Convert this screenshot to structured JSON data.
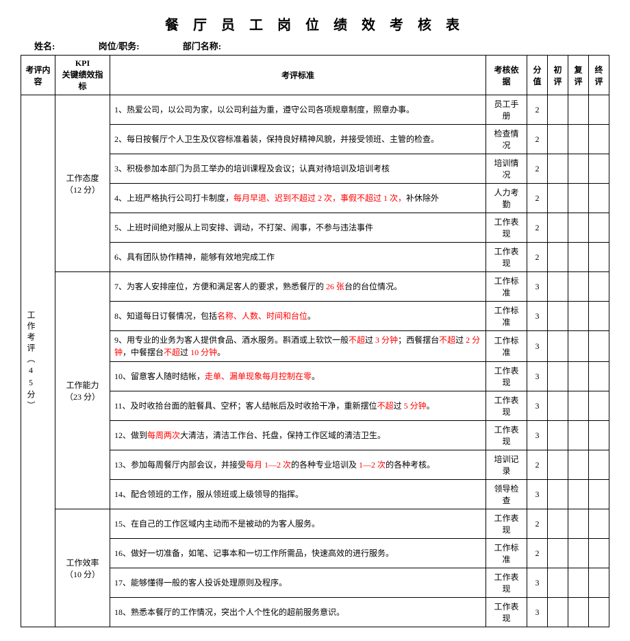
{
  "title": "餐 厅 员 工 岗 位 绩 效 考 核 表",
  "header": {
    "name_label": "姓名:",
    "position_label": "岗位/职务:",
    "dept_label": "部门名称:"
  },
  "columns": {
    "content": "考评内容",
    "kpi_top": "KPI",
    "kpi_sub": "关键绩效指标",
    "criteria": "考评标准",
    "basis": "考核依据",
    "score": "分值",
    "eval1": "初评",
    "eval2": "复评",
    "eval3": "终评"
  },
  "section": {
    "label": "工作考评（45分）"
  },
  "groups": [
    {
      "name": "工作态度",
      "points": "（12 分）",
      "rows": [
        {
          "text": "1、热爱公司，以公司为家，以公司利益为重，遵守公司各项规章制度，照章办事。",
          "basis": "员工手册",
          "score": "2"
        },
        {
          "text": "2、每日按餐厅个人卫生及仪容标准着装，保持良好精神风貌，并接受领班、主管的检查。",
          "basis": "检查情况",
          "score": "2"
        },
        {
          "text": "3、积极参加本部门为员工举办的培训课程及会议；认真对待培训及培训考核",
          "basis": "培训情况",
          "score": "2"
        },
        {
          "html": "4、上班严格执行公司打卡制度，<span class=\"red\">每月早退、迟到不超过 2 次，事假不超过 1 次，</span>补休除外",
          "basis": "人力考勤",
          "score": "2"
        },
        {
          "text": "5、上班时间绝对服从上司安排、调动，不打架、闹事，不参与违法事件",
          "basis": "工作表现",
          "score": "2"
        },
        {
          "text": "6、具有团队协作精神，能够有效地完成工作",
          "basis": "工作表现",
          "score": "2"
        }
      ]
    },
    {
      "name": "工作能力",
      "points": "（23 分）",
      "rows": [
        {
          "html": "7、为客人安排座位，方便和满足客人的要求，熟悉餐厅的 <span class=\"red\">26 张</span>台的台位情况。",
          "basis": "工作标准",
          "score": "3"
        },
        {
          "html": "8、知道每日订餐情况，包括<span class=\"red\">名称、人数、时间和台位</span>。",
          "basis": "工作标准",
          "score": "3"
        },
        {
          "html": "9、用专业的业务为客人提供食品、酒水服务。斟酒或上软饮一般<span class=\"red\">不超</span>过 <span class=\"red\">3 分钟</span>；西餐摆台<span class=\"red\">不超</span>过 <span class=\"red\">2 分钟</span>，中餐摆台<span class=\"red\">不超</span>过 <span class=\"red\">10 分钟</span>。",
          "basis": "工作标准",
          "score": "3"
        },
        {
          "html": "10、留意客人随时结帐，<span class=\"red\">走单、漏单现象每月控制在零</span>。",
          "basis": "工作表现",
          "score": "3"
        },
        {
          "html": "11、及时收拾台面的脏餐具、空杯；客人结帐后及时收拾干净，重新摆位<span class=\"red\">不超</span>过 <span class=\"red\">5 分钟</span>。",
          "basis": "工作表现",
          "score": "3"
        },
        {
          "html": "12、做到<span class=\"red\">每周两次</span>大清洁，清洁工作台、托盘，保持工作区域的清洁卫生。",
          "basis": "工作表现",
          "score": "3"
        },
        {
          "html": "13、参加每周餐厅内部会议，并接受<span class=\"red\">每月 1—2 次</span>的各种专业培训及 <span class=\"red\">1—2 次</span>的各种考核。",
          "basis": "培训记录",
          "score": "2"
        },
        {
          "text": "14、配合领班的工作，服从领班或上级领导的指挥。",
          "basis": "领导检查",
          "score": "3"
        }
      ]
    },
    {
      "name": "工作效率",
      "points": "（10 分）",
      "rows": [
        {
          "text": "15、在自己的工作区域内主动而不是被动的为客人服务。",
          "basis": "工作表现",
          "score": "2"
        },
        {
          "text": "16、做好一切准备，如笔、记事本和一切工作所需品，快速高效的进行服务。",
          "basis": "工作标准",
          "score": "2"
        },
        {
          "text": "17、能够懂得一般的客人投诉处理原则及程序。",
          "basis": "工作表现",
          "score": "3"
        },
        {
          "text": "18、熟悉本餐厅的工作情况，突出个人个性化的超前服务意识。",
          "basis": "工作表现",
          "score": "3"
        }
      ]
    }
  ]
}
